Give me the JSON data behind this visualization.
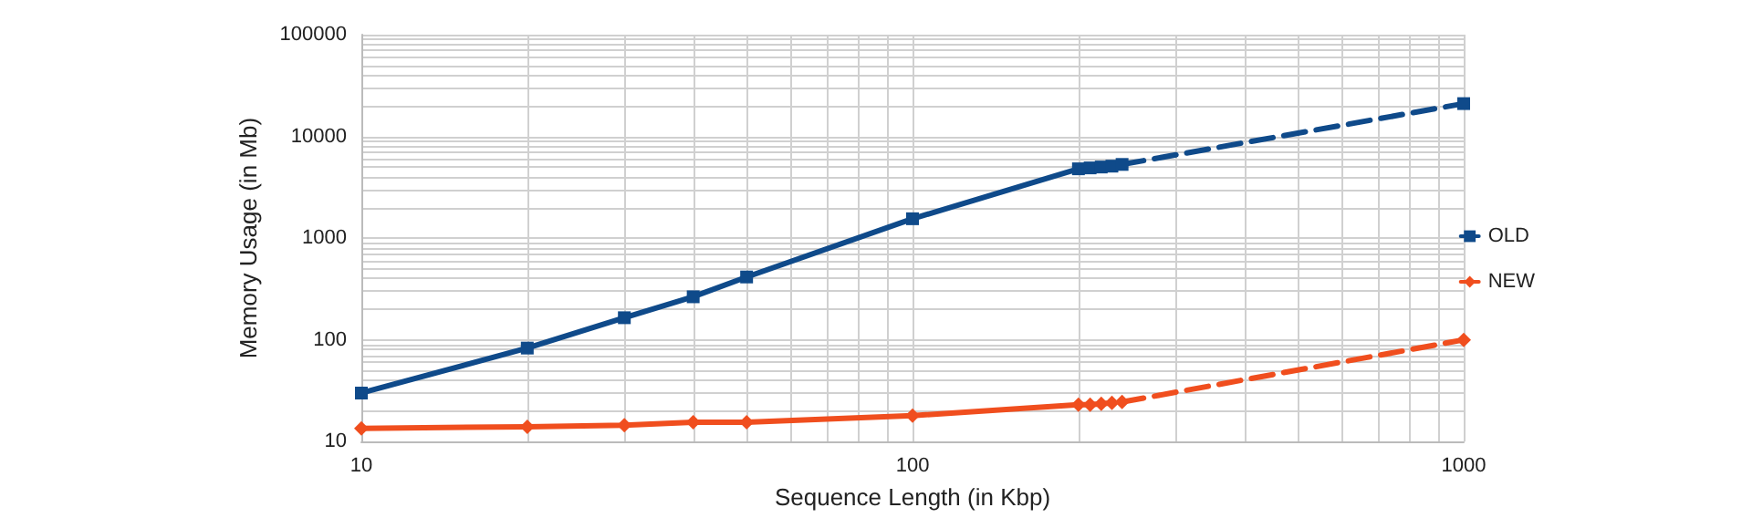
{
  "chart_data": {
    "type": "line",
    "xlabel": "Sequence Length (in Kbp)",
    "ylabel": "Memory Usage (in Mb)",
    "log": "xy",
    "grid": true,
    "legend": "right",
    "xlim": [
      10,
      1000
    ],
    "xticks": [
      10,
      100,
      1000
    ],
    "ylim": [
      10,
      100000
    ],
    "yticks": [
      10,
      100,
      1000,
      10000,
      100000
    ],
    "series": [
      {
        "name": "OLD",
        "color": "#0f4a8a",
        "marker": "square",
        "line_style": "solid",
        "x": [
          10,
          20,
          30,
          40,
          50,
          100,
          200,
          210,
          220,
          230
        ],
        "values": [
          30,
          83,
          165,
          265,
          415,
          1550,
          4800,
          4900,
          5000,
          5100
        ]
      },
      {
        "name": "NEW",
        "color": "#f04e1e",
        "marker": "diamond",
        "line_style": "solid",
        "x": [
          10,
          20,
          30,
          40,
          50,
          100,
          200,
          210,
          220,
          230
        ],
        "values": [
          13.5,
          14,
          14.5,
          15.5,
          15.5,
          18,
          23,
          23,
          23.5,
          24
        ]
      },
      {
        "color": "#0f4a8a",
        "marker": "square",
        "line_style": "dashed",
        "x": [
          240,
          1000
        ],
        "values": [
          5300,
          21000
        ]
      },
      {
        "color": "#f04e1e",
        "marker": "diamond",
        "line_style": "dashed",
        "x": [
          240,
          1000
        ],
        "values": [
          24.5,
          100
        ]
      }
    ]
  }
}
